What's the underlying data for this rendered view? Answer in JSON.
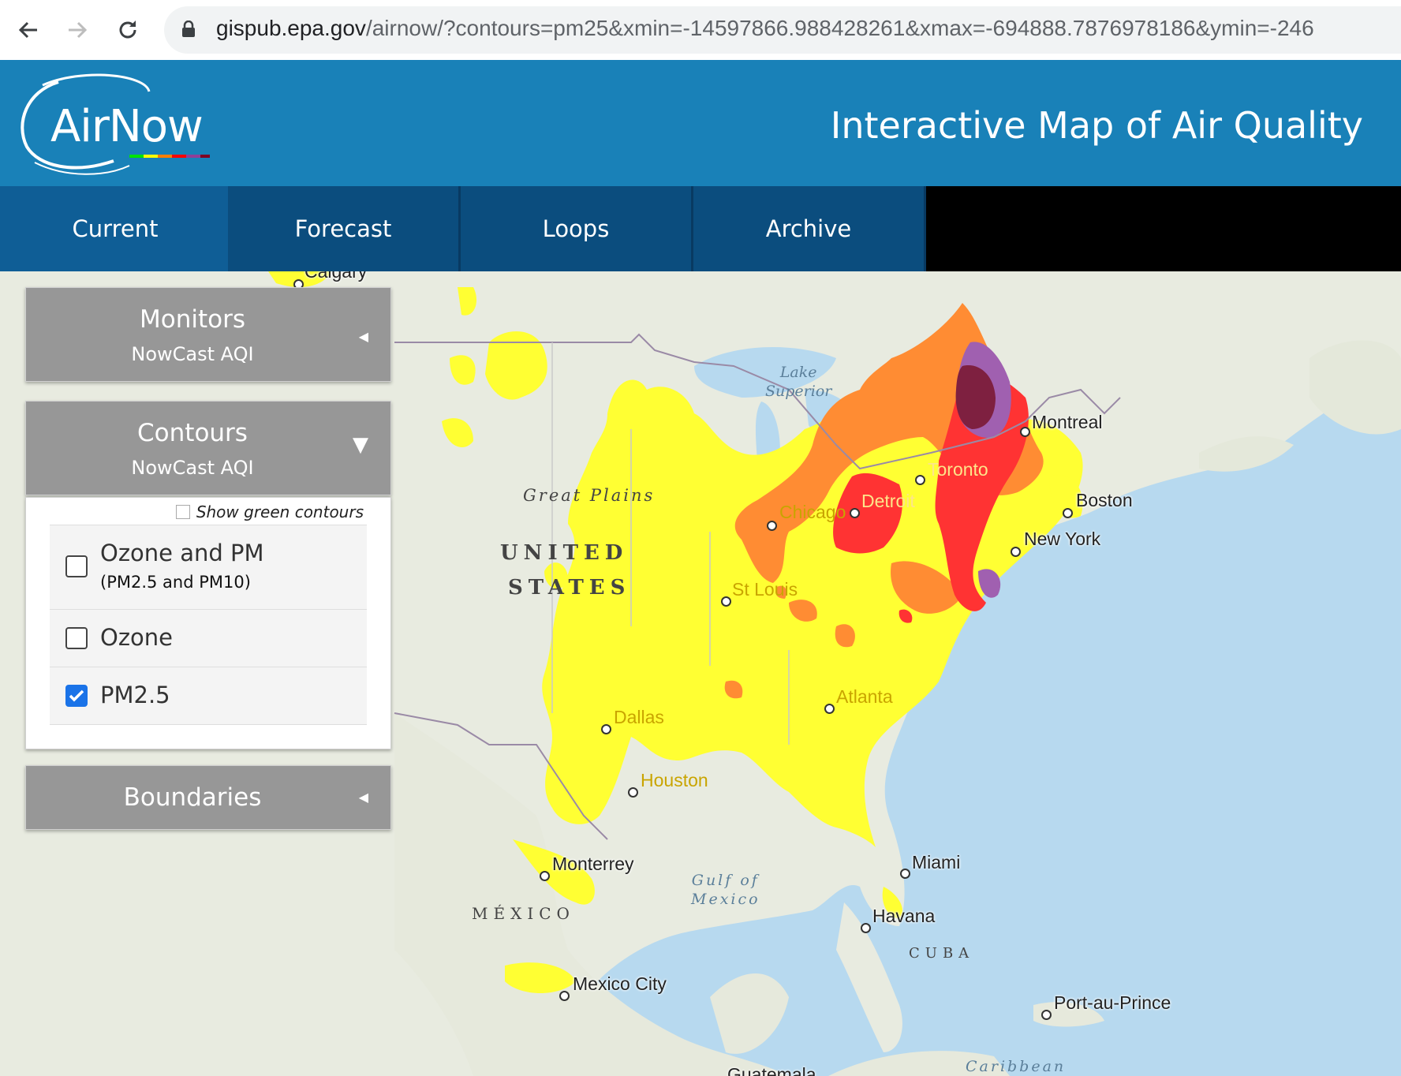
{
  "browser": {
    "url_host": "gispub.epa.gov",
    "url_path": "/airnow/?contours=pm25&xmin=-14597866.988428261&xmax=-694888.7876978186&ymin=-246"
  },
  "header": {
    "logo_text": "AirNow",
    "title": "Interactive Map of Air Quality",
    "colors": {
      "header_bg": "#1981b8",
      "tab_bg": "#0b4d7e"
    }
  },
  "tabs": [
    {
      "label": "Current",
      "active": true
    },
    {
      "label": "Forecast",
      "active": false
    },
    {
      "label": "Loops",
      "active": false
    },
    {
      "label": "Archive",
      "active": false
    }
  ],
  "panels": {
    "monitors": {
      "title": "Monitors",
      "subtitle": "NowCast AQI",
      "state": "collapsed"
    },
    "contours": {
      "title": "Contours",
      "subtitle": "NowCast AQI",
      "state": "expanded",
      "show_green_label": "Show green contours",
      "show_green_checked": false,
      "options": [
        {
          "label": "Ozone and PM",
          "sub": "(PM2.5 and PM10)",
          "checked": false
        },
        {
          "label": "Ozone",
          "sub": "",
          "checked": false
        },
        {
          "label": "PM2.5",
          "sub": "",
          "checked": true
        }
      ]
    },
    "boundaries": {
      "title": "Boundaries",
      "state": "collapsed"
    }
  },
  "map": {
    "cities": {
      "calgary": "Calgary",
      "montreal": "Montreal",
      "toronto": "Toronto",
      "boston": "Boston",
      "detroit": "Detroit",
      "chicago": "Chicago",
      "new_york": "New York",
      "st_louis": "St Louis",
      "atlanta": "Atlanta",
      "dallas": "Dallas",
      "houston": "Houston",
      "monterrey": "Monterrey",
      "miami": "Miami",
      "havana": "Havana",
      "mexico_city": "Mexico City",
      "port_au_prince": "Port-au-Prince",
      "guatemala": "Guatemala"
    },
    "regions": {
      "great_plains": "Great Plains",
      "united": "UNITED",
      "states": "STATES",
      "mexico": "MÉXICO",
      "cuba": "CUBA"
    },
    "water": {
      "lake_superior_1": "Lake",
      "lake_superior_2": "Superior",
      "gulf_1": "Gulf of",
      "gulf_2": "Mexico",
      "caribbean": "Caribbean"
    },
    "aqi_colors": {
      "good": "#00e400",
      "moderate": "#ffff00",
      "usg": "#ff7e00",
      "unhealthy": "#ff0000",
      "very_unhealthy": "#8f3f97",
      "hazardous": "#7e0023"
    }
  }
}
